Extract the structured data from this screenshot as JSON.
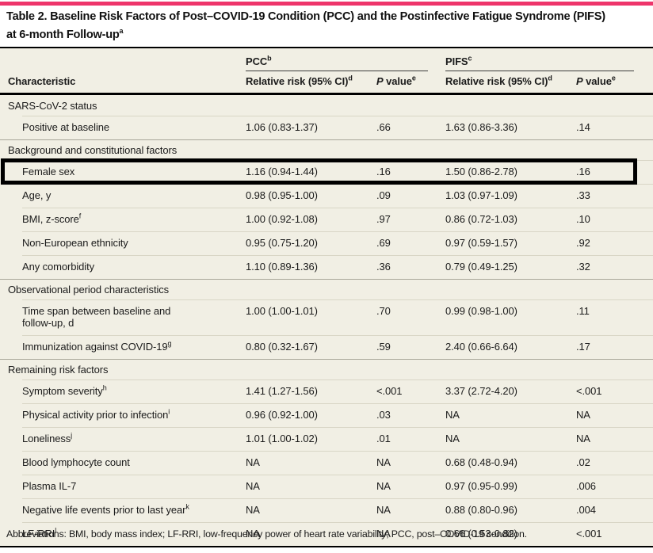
{
  "accent": {
    "bar_color": "#ee356b",
    "table_bg": "#f1efe4"
  },
  "title": {
    "text": "Table 2. Baseline Risk Factors of Post–COVID-19 Condition (PCC) and the Postinfective Fatigue Syndrome (PIFS)\nat 6-month Follow-up",
    "sup": "a"
  },
  "table": {
    "characteristic_label": "Characteristic",
    "groups": [
      {
        "label": "PCC",
        "sup": "b",
        "rr_label": "Relative risk (95% CI)",
        "rr_sup": "d",
        "p_prefix": "P",
        "p_rest": " value",
        "p_sup": "e"
      },
      {
        "label": "PIFS",
        "sup": "c",
        "rr_label": "Relative risk (95% CI)",
        "rr_sup": "d",
        "p_prefix": "P",
        "p_rest": " value",
        "p_sup": "e"
      }
    ],
    "rows": [
      {
        "type": "section",
        "label": "SARS-CoV-2 status"
      },
      {
        "type": "data",
        "label": "Positive at baseline",
        "pcc_rr": "1.06 (0.83-1.37)",
        "pcc_p": ".66",
        "pifs_rr": "1.63 (0.86-3.36)",
        "pifs_p": ".14"
      },
      {
        "type": "section",
        "label": "Background and constitutional factors"
      },
      {
        "type": "data",
        "label": "Female sex",
        "highlight": true,
        "pcc_rr": "1.16 (0.94-1.44)",
        "pcc_p": ".16",
        "pifs_rr": "1.50 (0.86-2.78)",
        "pifs_p": ".16"
      },
      {
        "type": "data",
        "label": "Age, y",
        "pcc_rr": "0.98 (0.95-1.00)",
        "pcc_p": ".09",
        "pifs_rr": "1.03 (0.97-1.09)",
        "pifs_p": ".33"
      },
      {
        "type": "data",
        "label": "BMI, z-score",
        "sup": "f",
        "pcc_rr": "1.00 (0.92-1.08)",
        "pcc_p": ".97",
        "pifs_rr": "0.86 (0.72-1.03)",
        "pifs_p": ".10"
      },
      {
        "type": "data",
        "label": "Non-European ethnicity",
        "pcc_rr": "0.95 (0.75-1.20)",
        "pcc_p": ".69",
        "pifs_rr": "0.97 (0.59-1.57)",
        "pifs_p": ".92"
      },
      {
        "type": "data",
        "label": "Any comorbidity",
        "pcc_rr": "1.10 (0.89-1.36)",
        "pcc_p": ".36",
        "pifs_rr": "0.79 (0.49-1.25)",
        "pifs_p": ".32"
      },
      {
        "type": "section",
        "label": "Observational period characteristics"
      },
      {
        "type": "data",
        "label": "Time span between baseline and\nfollow-up, d",
        "pcc_rr": "1.00 (1.00-1.01)",
        "pcc_p": ".70",
        "pifs_rr": "0.99 (0.98-1.00)",
        "pifs_p": ".11"
      },
      {
        "type": "data",
        "label": "Immunization against COVID-19",
        "sup": "g",
        "pcc_rr": "0.80 (0.32-1.67)",
        "pcc_p": ".59",
        "pifs_rr": "2.40 (0.66-6.64)",
        "pifs_p": ".17"
      },
      {
        "type": "section",
        "label": "Remaining risk factors"
      },
      {
        "type": "data",
        "label": "Symptom severity",
        "sup": "h",
        "pcc_rr": "1.41 (1.27-1.56)",
        "pcc_p": "<.001",
        "pifs_rr": "3.37 (2.72-4.20)",
        "pifs_p": "<.001"
      },
      {
        "type": "data",
        "label": "Physical activity prior to infection",
        "sup": "i",
        "pcc_rr": "0.96 (0.92-1.00)",
        "pcc_p": ".03",
        "pifs_rr": "NA",
        "pifs_p": "NA"
      },
      {
        "type": "data",
        "label": "Loneliness",
        "sup": "j",
        "pcc_rr": "1.01 (1.00-1.02)",
        "pcc_p": ".01",
        "pifs_rr": "NA",
        "pifs_p": "NA"
      },
      {
        "type": "data",
        "label": "Blood lymphocyte count",
        "pcc_rr": "NA",
        "pcc_p": "NA",
        "pifs_rr": "0.68 (0.48-0.94)",
        "pifs_p": ".02"
      },
      {
        "type": "data",
        "label": "Plasma IL-7",
        "pcc_rr": "NA",
        "pcc_p": "NA",
        "pifs_rr": "0.97 (0.95-0.99)",
        "pifs_p": ".006"
      },
      {
        "type": "data",
        "label": "Negative life events prior to last year",
        "sup": "k",
        "pcc_rr": "NA",
        "pcc_p": "NA",
        "pifs_rr": "0.88 (0.80-0.96)",
        "pifs_p": ".004"
      },
      {
        "type": "data",
        "label": "LF-RRI",
        "sup": "l",
        "pcc_rr": "NA",
        "pcc_p": "NA",
        "pifs_rr": "0.66 (0.53-0.82)",
        "pifs_p": "<.001"
      }
    ]
  },
  "footer": {
    "text": "Abbreviations: BMI, body mass index; LF-RRI, low-frequency power of heart rate variability; PCC, post–COVID-19 condition."
  }
}
